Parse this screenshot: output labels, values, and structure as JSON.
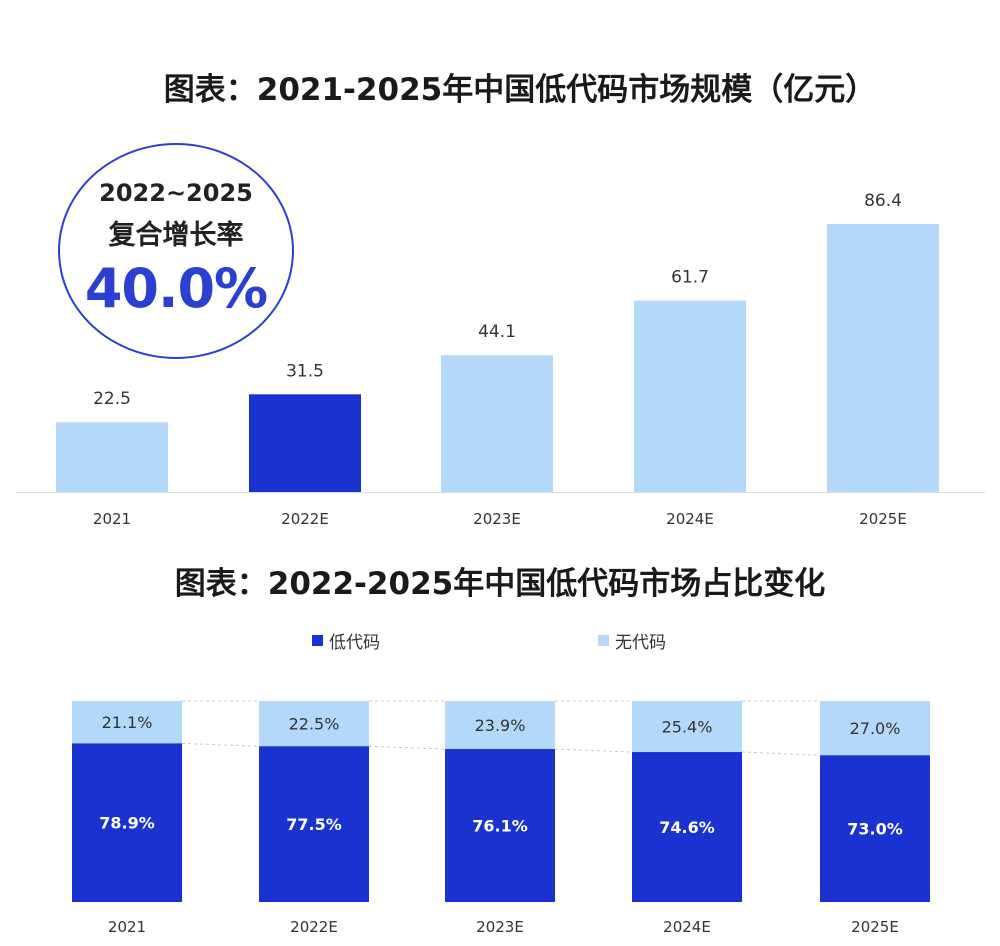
{
  "chart_data": [
    {
      "type": "bar",
      "title": "图表：2021-2025年中国低代码市场规模（亿元）",
      "categories": [
        "2021",
        "2022E",
        "2023E",
        "2024E",
        "2025E"
      ],
      "values": [
        22.5,
        31.5,
        44.1,
        61.7,
        86.4
      ],
      "data_labels": [
        "22.5",
        "31.5",
        "44.1",
        "61.7",
        "86.4"
      ],
      "highlight_index": 1,
      "ylim": [
        0,
        86.4
      ],
      "grid": false,
      "colors": {
        "normal": "#b3d8fa",
        "highlight": "#1a33d0"
      }
    },
    {
      "type": "bar",
      "stacked": true,
      "percent": true,
      "title": "图表：2022-2025年中国低代码市场占比变化",
      "categories": [
        "2021",
        "2022E",
        "2023E",
        "2024E",
        "2025E"
      ],
      "series": [
        {
          "name": "低代码",
          "values": [
            78.9,
            77.5,
            76.1,
            74.6,
            73.0
          ],
          "labels": [
            "78.9%",
            "77.5%",
            "76.1%",
            "74.6%",
            "73.0%"
          ],
          "color": "#1a33d0"
        },
        {
          "name": "无代码",
          "values": [
            21.1,
            22.5,
            23.9,
            25.4,
            27.0
          ],
          "labels": [
            "21.1%",
            "22.5%",
            "23.9%",
            "25.4%",
            "27.0%"
          ],
          "color": "#b3d8fa"
        }
      ],
      "ylim": [
        0,
        100
      ],
      "legend_position": "top",
      "grid": false
    }
  ],
  "growth_badge": {
    "period": "2022~2025",
    "label": "复合增长率",
    "value": "40.0%"
  }
}
